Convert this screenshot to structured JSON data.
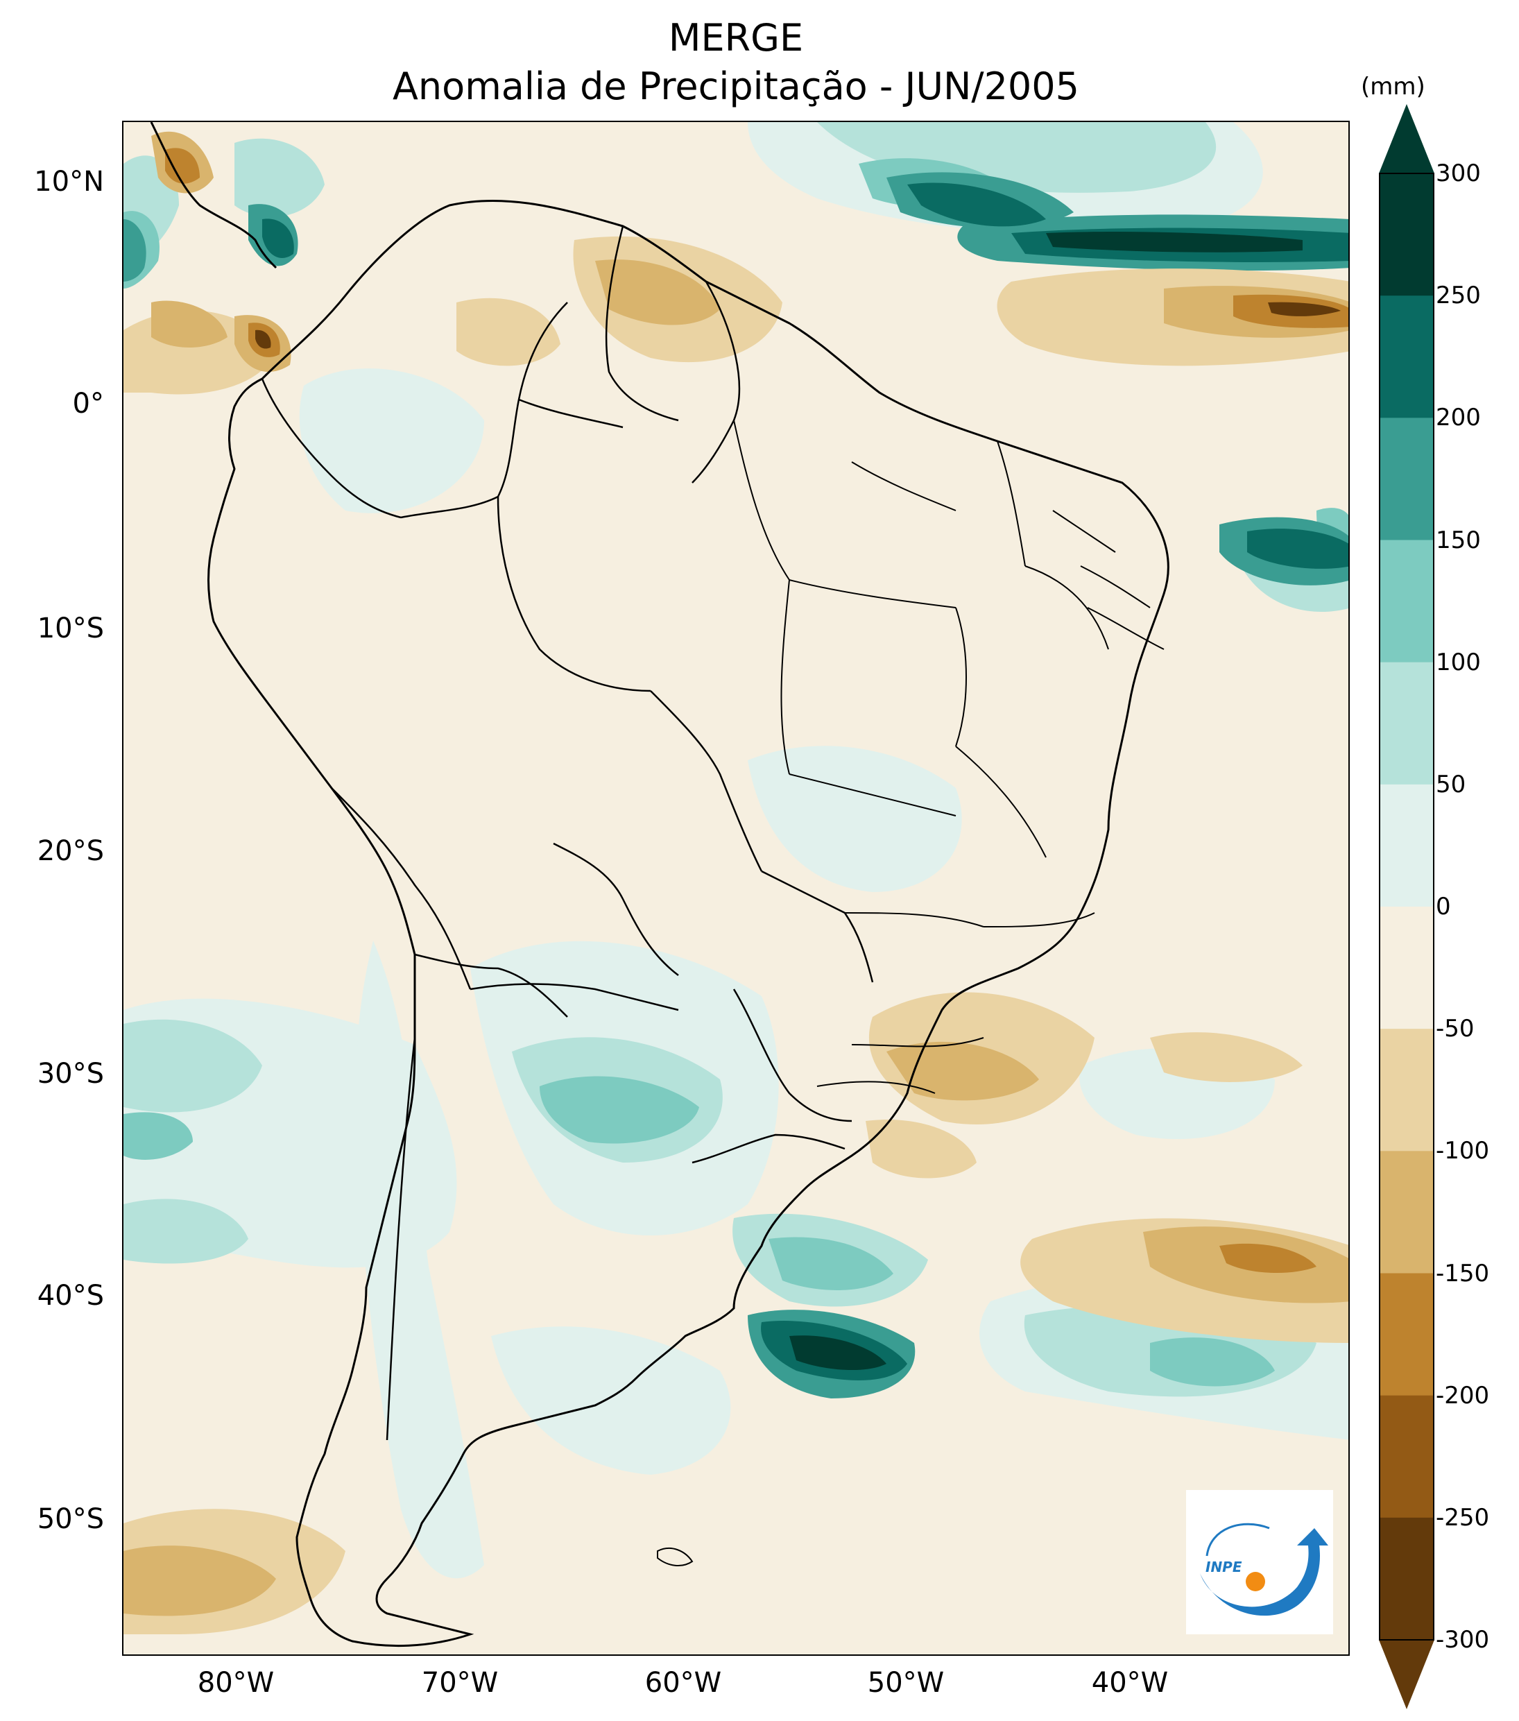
{
  "title": "MERGE",
  "subtitle": "Anomalia de Precipitação - JUN/2005",
  "lat_labels": [
    "10°N",
    "0°",
    "10°S",
    "20°S",
    "30°S",
    "40°S",
    "50°S"
  ],
  "lon_labels": [
    "80°W",
    "70°W",
    "60°W",
    "50°W",
    "40°W"
  ],
  "colorbar": {
    "unit": "(mm)",
    "ticks": [
      "300",
      "250",
      "200",
      "150",
      "100",
      "50",
      "0",
      "-50",
      "-100",
      "-150",
      "-200",
      "-250",
      "-300"
    ],
    "colors": [
      "#013b30",
      "#0a6b62",
      "#3a9d92",
      "#7dcbc0",
      "#b5e2da",
      "#e1f1ed",
      "#f6efe0",
      "#ead3a3",
      "#d9b46d",
      "#be832e",
      "#935a15",
      "#633a0b"
    ],
    "extend": "both"
  },
  "logo": {
    "text": "INPE",
    "colors": {
      "arrow": "#1f7ac2",
      "dot": "#f28c13"
    }
  },
  "map_palette": {
    "land_outline": "#000000",
    "ocean_background": "#f6efe0"
  }
}
